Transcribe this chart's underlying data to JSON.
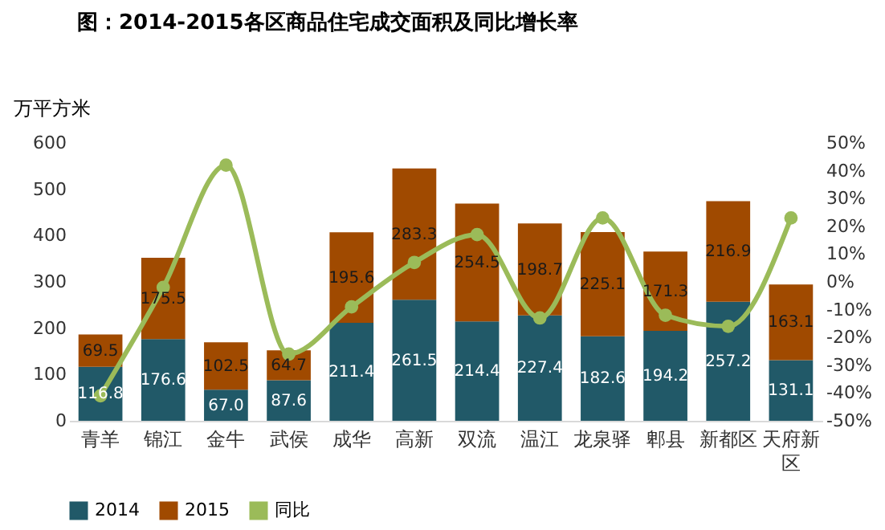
{
  "chart_data": {
    "type": "bar",
    "title": "图：2014-2015各区商品住宅成交面积及同比增长率",
    "ylabel": "万平方米",
    "categories": [
      "青羊",
      "锦江",
      "金牛",
      "武侯",
      "成华",
      "高新",
      "双流",
      "温江",
      "龙泉驿",
      "郫县",
      "新都区",
      "天府新区"
    ],
    "stacked": true,
    "series": [
      {
        "name": "2014",
        "color": "#215968",
        "values": [
          116.8,
          176.6,
          67.0,
          87.6,
          211.4,
          261.5,
          214.4,
          227.4,
          182.6,
          194.2,
          257.2,
          131.1
        ],
        "value_labels": [
          "116.8",
          "176.6",
          "67.0",
          "87.6",
          "211.4",
          "261.5",
          "214.4",
          "227.4",
          "182.6",
          "194.2",
          "257.2",
          "131.1"
        ]
      },
      {
        "name": "2015",
        "color": "#a04a00",
        "values": [
          69.5,
          175.5,
          102.5,
          64.7,
          195.6,
          283.3,
          254.5,
          198.7,
          225.1,
          171.3,
          216.9,
          163.1
        ],
        "value_labels": [
          "69.5",
          "175.5",
          "102.5",
          "64.7",
          "195.6",
          "283.3",
          "254.5",
          "198.7",
          "225.1",
          "171.3",
          "216.9",
          "163.1"
        ]
      },
      {
        "name": "同比",
        "color": "#9bbb59",
        "type": "line",
        "axis": "y2",
        "marker": "circle",
        "values": [
          -41,
          -2,
          42,
          -26,
          -9,
          7,
          17,
          -13,
          23,
          -12,
          -16,
          23
        ]
      }
    ],
    "ylim": [
      0,
      600
    ],
    "yticks": [
      0,
      100,
      200,
      300,
      400,
      500,
      600
    ],
    "y2lim": [
      -50,
      50
    ],
    "y2ticks": [
      {
        "value": -50,
        "label": "-50%"
      },
      {
        "value": -40,
        "label": "-40%"
      },
      {
        "value": -30,
        "label": "-30%"
      },
      {
        "value": -20,
        "label": "-20%"
      },
      {
        "value": -10,
        "label": "-10%"
      },
      {
        "value": 0,
        "label": "0%"
      },
      {
        "value": 10,
        "label": "10%"
      },
      {
        "value": 20,
        "label": "20%"
      },
      {
        "value": 30,
        "label": "30%"
      },
      {
        "value": 40,
        "label": "40%"
      },
      {
        "value": 50,
        "label": "50%"
      }
    ],
    "legend": "bottom",
    "grid": false
  }
}
